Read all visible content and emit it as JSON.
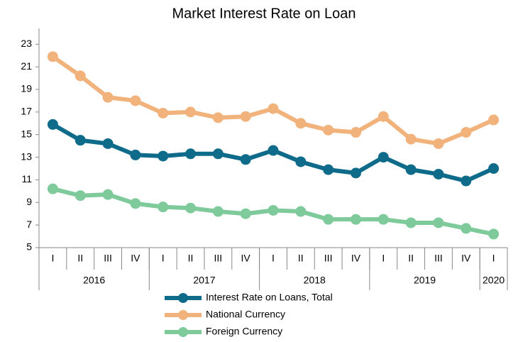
{
  "chart_data": {
    "type": "line",
    "title": "Market Interest Rate on Loan",
    "categories": [
      "I",
      "II",
      "III",
      "IV",
      "I",
      "II",
      "III",
      "IV",
      "I",
      "II",
      "III",
      "IV",
      "I",
      "II",
      "III",
      "IV",
      "I"
    ],
    "groups": [
      {
        "label": "2016",
        "count": 4
      },
      {
        "label": "2017",
        "count": 4
      },
      {
        "label": "2018",
        "count": 4
      },
      {
        "label": "2019",
        "count": 4
      },
      {
        "label": "2020",
        "count": 1
      }
    ],
    "series": [
      {
        "name": "Interest Rate on Loans, Total",
        "color": "#0f6b8a",
        "values": [
          15.9,
          14.5,
          14.2,
          13.2,
          13.1,
          13.3,
          13.3,
          12.8,
          13.6,
          12.6,
          11.9,
          11.6,
          13.0,
          11.9,
          11.5,
          10.9,
          12.0
        ]
      },
      {
        "name": "National Currency",
        "color": "#f1b27c",
        "values": [
          21.9,
          20.2,
          18.3,
          18.0,
          16.9,
          17.0,
          16.5,
          16.6,
          17.3,
          16.0,
          15.4,
          15.2,
          16.6,
          14.6,
          14.2,
          15.2,
          16.3
        ]
      },
      {
        "name": "Foreign Currency",
        "color": "#7fca9a",
        "values": [
          10.2,
          9.6,
          9.7,
          8.9,
          8.6,
          8.5,
          8.2,
          8.0,
          8.3,
          8.2,
          7.5,
          7.5,
          7.5,
          7.2,
          7.2,
          6.7,
          6.2
        ]
      }
    ],
    "ylim": [
      5,
      24.4
    ],
    "yticks": [
      5,
      7,
      9,
      11,
      13,
      15,
      17,
      19,
      21,
      23
    ],
    "legend": "bottom"
  }
}
